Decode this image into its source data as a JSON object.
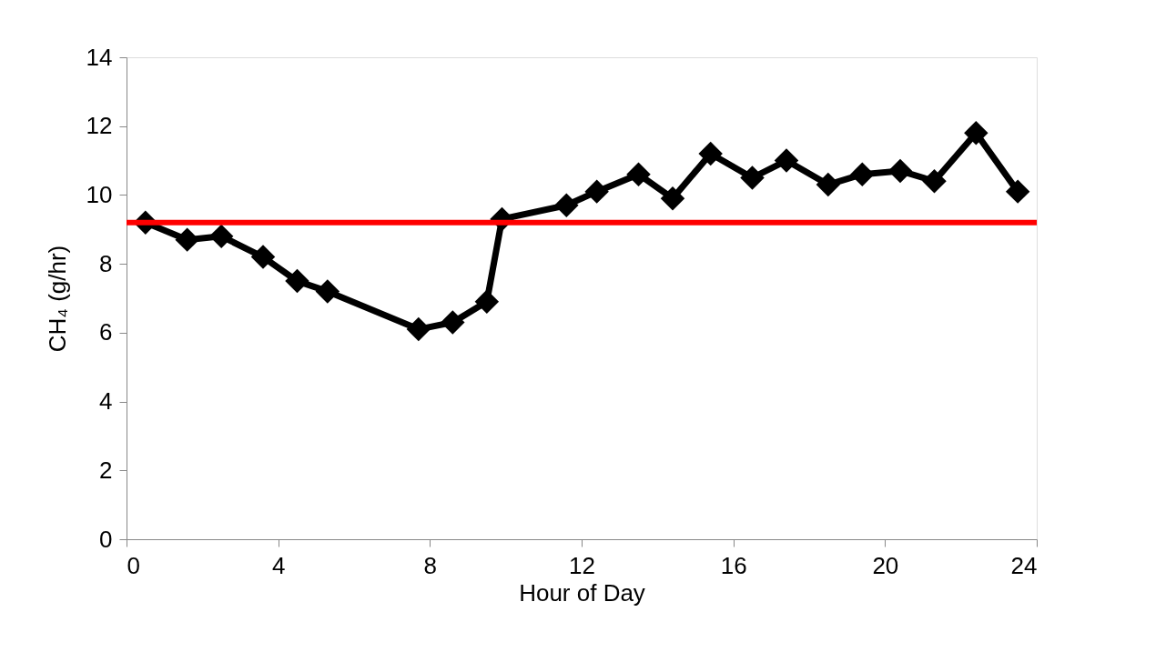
{
  "chart_data": {
    "type": "line",
    "xlabel": "Hour of Day",
    "ylabel": "CH₄ (g/hr)",
    "x": [
      0.5,
      1.6,
      2.5,
      3.6,
      4.5,
      5.3,
      7.7,
      8.6,
      9.5,
      9.9,
      11.6,
      12.4,
      13.5,
      14.4,
      15.4,
      16.5,
      17.4,
      18.5,
      19.4,
      20.4,
      21.3,
      22.4,
      23.5
    ],
    "series": [
      {
        "color": "#000000",
        "values": [
          9.2,
          8.7,
          8.8,
          8.2,
          7.5,
          7.2,
          6.1,
          6.3,
          6.9,
          9.3,
          9.7,
          10.1,
          10.6,
          9.9,
          11.2,
          10.5,
          11.0,
          10.3,
          10.6,
          10.7,
          10.4,
          11.8,
          10.1
        ]
      }
    ],
    "xlim": [
      0,
      24
    ],
    "xticks": [
      0,
      4,
      8,
      12,
      16,
      20,
      24
    ],
    "ylim": [
      0,
      14
    ],
    "yticks": [
      0,
      2,
      4,
      6,
      8,
      10,
      12,
      14
    ],
    "ref_lines": [
      {
        "axis": "y",
        "value": 9.2,
        "color": "#ff0000"
      }
    ],
    "marker": "diamond",
    "line_style": "solid",
    "grid": false
  }
}
